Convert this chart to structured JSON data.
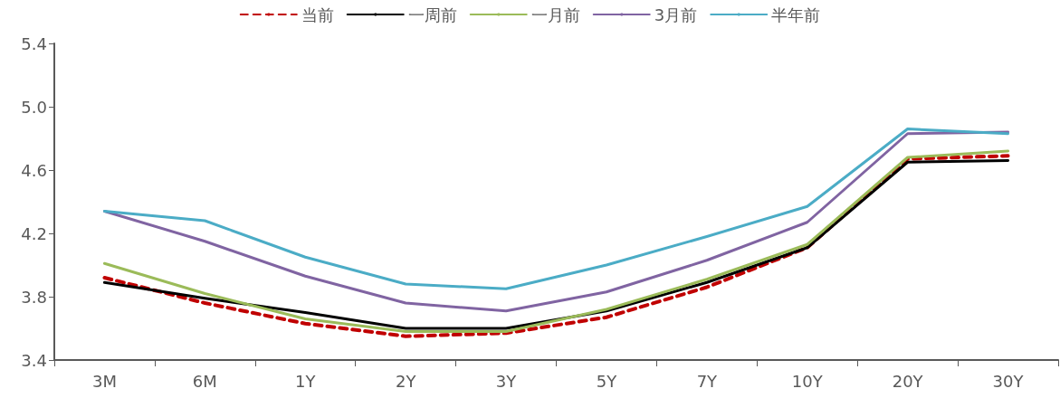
{
  "chart_data": {
    "type": "line",
    "categories": [
      "3M",
      "6M",
      "1Y",
      "2Y",
      "3Y",
      "5Y",
      "7Y",
      "10Y",
      "20Y",
      "30Y"
    ],
    "series": [
      {
        "name": "当前",
        "color": "#c00000",
        "line_style": "dashed",
        "values": [
          3.92,
          3.76,
          3.63,
          3.55,
          3.57,
          3.67,
          3.86,
          4.11,
          4.67,
          4.69
        ]
      },
      {
        "name": "一周前",
        "color": "#000000",
        "values": [
          3.89,
          3.79,
          3.7,
          3.6,
          3.6,
          3.71,
          3.89,
          4.11,
          4.65,
          4.66
        ]
      },
      {
        "name": "一月前",
        "color": "#9bbb59",
        "values": [
          4.01,
          3.82,
          3.66,
          3.58,
          3.58,
          3.72,
          3.91,
          4.13,
          4.68,
          4.72
        ]
      },
      {
        "name": "3月前",
        "color": "#8064a2",
        "values": [
          4.34,
          4.15,
          3.93,
          3.76,
          3.71,
          3.83,
          4.03,
          4.27,
          4.83,
          4.84
        ]
      },
      {
        "name": "半年前",
        "color": "#4bacc6",
        "values": [
          4.34,
          4.28,
          4.05,
          3.88,
          3.85,
          4.0,
          4.18,
          4.37,
          4.86,
          4.83
        ]
      }
    ],
    "ylim": [
      3.4,
      5.4
    ],
    "yticks": [
      3.4,
      3.8,
      4.2,
      4.6,
      {
        "value": 5,
        "label": "5.0"
      },
      5.4
    ],
    "grid": false,
    "legend": "top",
    "marker": "none",
    "line_style": "solid"
  }
}
